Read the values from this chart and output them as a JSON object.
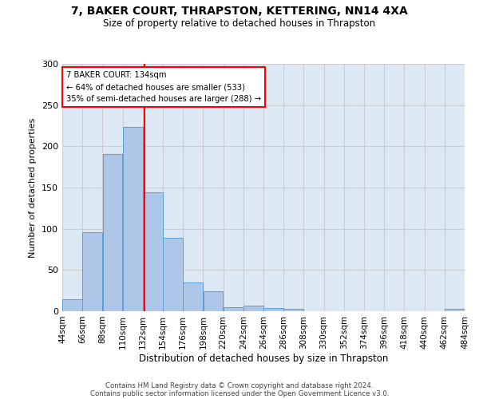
{
  "title1": "7, BAKER COURT, THRAPSTON, KETTERING, NN14 4XA",
  "title2": "Size of property relative to detached houses in Thrapston",
  "xlabel": "Distribution of detached houses by size in Thrapston",
  "ylabel": "Number of detached properties",
  "bar_values": [
    15,
    96,
    191,
    224,
    144,
    89,
    35,
    24,
    5,
    7,
    4,
    3,
    0,
    0,
    0,
    0,
    0,
    0,
    0,
    3
  ],
  "bin_edges": [
    44,
    66,
    88,
    110,
    132,
    154,
    176,
    198,
    220,
    242,
    264,
    286,
    308,
    330,
    352,
    374,
    396,
    418,
    440,
    462,
    484
  ],
  "tick_labels": [
    "44sqm",
    "66sqm",
    "88sqm",
    "110sqm",
    "132sqm",
    "154sqm",
    "176sqm",
    "198sqm",
    "220sqm",
    "242sqm",
    "264sqm",
    "286sqm",
    "308sqm",
    "330sqm",
    "352sqm",
    "374sqm",
    "396sqm",
    "418sqm",
    "440sqm",
    "462sqm",
    "484sqm"
  ],
  "bar_color": "#aec6e8",
  "bar_edgecolor": "#5a9fd4",
  "vline_x": 134,
  "vline_color": "red",
  "annotation_text": "7 BAKER COURT: 134sqm\n← 64% of detached houses are smaller (533)\n35% of semi-detached houses are larger (288) →",
  "annotation_box_edgecolor": "red",
  "ylim": [
    0,
    300
  ],
  "yticks": [
    0,
    50,
    100,
    150,
    200,
    250,
    300
  ],
  "grid_color": "#cccccc",
  "bg_color": "#dce9f5",
  "footer1": "Contains HM Land Registry data © Crown copyright and database right 2024.",
  "footer2": "Contains public sector information licensed under the Open Government Licence v3.0."
}
